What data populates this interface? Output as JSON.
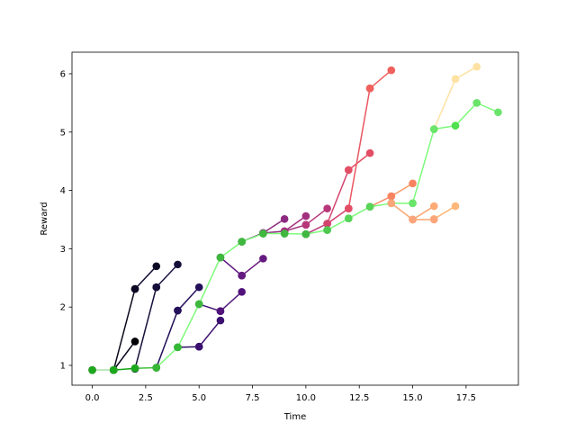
{
  "chart_data": {
    "type": "line",
    "title": "",
    "xlabel": "Time",
    "ylabel": "Reward",
    "xlim": [
      -0.95,
      19.95
    ],
    "ylim": [
      0.66,
      6.37
    ],
    "xticks": [
      0,
      2.5,
      5,
      7.5,
      10,
      12.5,
      15,
      17.5
    ],
    "xtick_labels": [
      "0.0",
      "2.5",
      "5.0",
      "7.5",
      "10.0",
      "12.5",
      "15.0",
      "17.5"
    ],
    "yticks": [
      1,
      2,
      3,
      4,
      5,
      6
    ],
    "ytick_labels": [
      "1",
      "2",
      "3",
      "4",
      "5",
      "6"
    ],
    "grid": false,
    "legend": "none",
    "segments": [
      {
        "line_color": "#0b0a1c",
        "point_color": "#000004",
        "x": [
          0,
          1
        ],
        "y": [
          0.92,
          0.92
        ]
      },
      {
        "line_color": "#0b0a1c",
        "point_color": "#000004",
        "x": [
          1,
          2
        ],
        "y": [
          0.92,
          2.31
        ]
      },
      {
        "line_color": "#0b0a1c",
        "point_color": "#000004",
        "x": [
          1,
          2
        ],
        "y": [
          0.92,
          1.41
        ]
      },
      {
        "line_color": "#140e36",
        "point_color": "#0b0924",
        "x": [
          2,
          3
        ],
        "y": [
          2.31,
          2.7
        ]
      },
      {
        "line_color": "#160f3b",
        "point_color": "#140e36",
        "x": [
          2,
          3
        ],
        "y": [
          0.94,
          2.34
        ]
      },
      {
        "line_color": "#1e1246",
        "point_color": "#150e38",
        "x": [
          3,
          4
        ],
        "y": [
          2.34,
          2.73
        ]
      },
      {
        "line_color": "#24105a",
        "point_color": "#1d1147",
        "x": [
          3,
          4
        ],
        "y": [
          0.96,
          1.94
        ]
      },
      {
        "line_color": "#2c1160",
        "point_color": "#24105a",
        "x": [
          4,
          5
        ],
        "y": [
          1.94,
          2.34
        ]
      },
      {
        "line_color": "#2c1163",
        "point_color": "#2f1163",
        "x": [
          4,
          5
        ],
        "y": [
          1.31,
          1.32
        ]
      },
      {
        "line_color": "#3e1070",
        "point_color": "#3b0f70",
        "x": [
          5,
          6
        ],
        "y": [
          1.32,
          1.77
        ]
      },
      {
        "line_color": "#3e1070",
        "point_color": "#3b0f70",
        "x": [
          5,
          6
        ],
        "y": [
          2.05,
          1.93
        ]
      },
      {
        "line_color": "#521a7a",
        "point_color": "#51127c",
        "x": [
          6,
          7
        ],
        "y": [
          1.93,
          2.26
        ]
      },
      {
        "line_color": "#5d177f",
        "point_color": "#57157e",
        "x": [
          6,
          7
        ],
        "y": [
          2.85,
          2.54
        ]
      },
      {
        "line_color": "#6d1d81",
        "point_color": "#641a80",
        "x": [
          7,
          8
        ],
        "y": [
          2.54,
          2.83
        ]
      },
      {
        "line_color": "#6b1d81",
        "point_color": "#641a80",
        "x": [
          7,
          8
        ],
        "y": [
          3.12,
          3.27
        ]
      },
      {
        "line_color": "#8f2a80",
        "point_color": "#8c2981",
        "x": [
          8,
          9
        ],
        "y": [
          3.27,
          3.51
        ]
      },
      {
        "line_color": "#8f2a80",
        "point_color": "#8c2981",
        "x": [
          8,
          9
        ],
        "y": [
          3.27,
          3.3
        ]
      },
      {
        "line_color": "#a3307e",
        "point_color": "#a3307e",
        "x": [
          9,
          10
        ],
        "y": [
          3.3,
          3.56
        ]
      },
      {
        "line_color": "#a3307e",
        "point_color": "#a3307e",
        "x": [
          9,
          10
        ],
        "y": [
          3.3,
          3.41
        ]
      },
      {
        "line_color": "#b73779",
        "point_color": "#b73779",
        "x": [
          10,
          11
        ],
        "y": [
          3.41,
          3.69
        ]
      },
      {
        "line_color": "#b73779",
        "point_color": "#b73779",
        "x": [
          10,
          11
        ],
        "y": [
          3.25,
          3.43
        ]
      },
      {
        "line_color": "#d3436e",
        "point_color": "#d3436e",
        "x": [
          11,
          12
        ],
        "y": [
          3.43,
          4.35
        ]
      },
      {
        "line_color": "#d3436e",
        "point_color": "#d3436e",
        "x": [
          11,
          12
        ],
        "y": [
          3.43,
          3.69
        ]
      },
      {
        "line_color": "#e34e65",
        "point_color": "#e34e65",
        "x": [
          12,
          13
        ],
        "y": [
          4.35,
          4.64
        ]
      },
      {
        "line_color": "#ea5661",
        "point_color": "#e34e65",
        "x": [
          12,
          13
        ],
        "y": [
          3.69,
          5.75
        ]
      },
      {
        "line_color": "#f0605d",
        "point_color": "#f0605d",
        "x": [
          13,
          14
        ],
        "y": [
          5.75,
          6.06
        ]
      },
      {
        "line_color": "#f68f6b",
        "point_color": "#f3765a",
        "x": [
          13,
          14
        ],
        "y": [
          3.72,
          3.9
        ]
      },
      {
        "line_color": "#f8a06e",
        "point_color": "#f8845f",
        "x": [
          14,
          15
        ],
        "y": [
          3.9,
          4.12
        ]
      },
      {
        "line_color": "#fca56f",
        "point_color": "#fcab75",
        "x": [
          15,
          16
        ],
        "y": [
          3.5,
          3.73
        ]
      },
      {
        "line_color": "#fdb87a",
        "point_color": "#fdb87a",
        "x": [
          16,
          17
        ],
        "y": [
          3.51,
          3.73
        ]
      },
      {
        "line_color": "#fde2a3",
        "point_color": "#fde2a3",
        "x": [
          17,
          18
        ],
        "y": [
          5.91,
          6.12
        ]
      },
      {
        "line_color": "#fde2a3",
        "point_color": "#fde2a3",
        "x": [
          16,
          17
        ],
        "y": [
          5.05,
          5.91
        ]
      },
      {
        "line_color": "#7dfa7b",
        "point_color": "#40d940",
        "x": [
          4,
          5
        ],
        "y": [
          1.31,
          2.05
        ]
      },
      {
        "line_color": "#7dfa7b",
        "point_color": "#3db83d",
        "x": [
          5,
          6
        ],
        "y": [
          2.05,
          2.85
        ]
      },
      {
        "line_color": "#7dfa7b",
        "point_color": "#40b840",
        "x": [
          6,
          7
        ],
        "y": [
          2.85,
          3.12
        ]
      },
      {
        "line_color": "#7dfa7b",
        "point_color": "#40b840",
        "x": [
          7,
          8
        ],
        "y": [
          3.12,
          3.26
        ]
      },
      {
        "line_color": "#7dfa7b",
        "point_color": "#40b840",
        "x": [
          8,
          9
        ],
        "y": [
          3.26,
          3.26
        ]
      },
      {
        "line_color": "#7dfa7b",
        "point_color": "#40b840",
        "x": [
          9,
          10
        ],
        "y": [
          3.26,
          3.25
        ]
      },
      {
        "line_color": "#7dfa7b",
        "point_color": "#40b840",
        "x": [
          10,
          11
        ],
        "y": [
          3.25,
          3.32
        ]
      },
      {
        "line_color": "#7dfa7b",
        "point_color": "#4ec84e",
        "x": [
          11,
          12
        ],
        "y": [
          3.32,
          3.52
        ]
      },
      {
        "line_color": "#7dfa7b",
        "point_color": "#58d458",
        "x": [
          12,
          13
        ],
        "y": [
          3.52,
          3.72
        ]
      },
      {
        "line_color": "#7dfa7b",
        "point_color": "#58d458",
        "x": [
          13,
          14
        ],
        "y": [
          3.72,
          3.78
        ]
      },
      {
        "line_color": "#7dfa7b",
        "point_color": "#60dc60",
        "x": [
          14,
          15
        ],
        "y": [
          3.78,
          3.78
        ]
      },
      {
        "line_color": "#7dfa7b",
        "point_color": "#6ae46a",
        "x": [
          15,
          16
        ],
        "y": [
          3.78,
          5.05
        ]
      },
      {
        "line_color": "#7dfa7b",
        "point_color": "#6ae46a",
        "x": [
          16,
          17
        ],
        "y": [
          5.05,
          5.11
        ]
      },
      {
        "line_color": "#7dfa7b",
        "point_color": "#50e050",
        "x": [
          17,
          18
        ],
        "y": [
          5.11,
          5.5
        ]
      },
      {
        "line_color": "#7dfa7b",
        "point_color": "#6ae46a",
        "x": [
          18,
          19
        ],
        "y": [
          5.5,
          5.34
        ]
      },
      {
        "line_color": "#c8ffc3",
        "point_color": "#1ea81e",
        "x": [
          0,
          1
        ],
        "y": [
          0.92,
          0.92
        ]
      },
      {
        "line_color": "#12a312",
        "point_color": "#1ea81e",
        "x": [
          1,
          2
        ],
        "y": [
          0.92,
          0.95
        ]
      },
      {
        "line_color": "#3ec33e",
        "point_color": "#1ea81e",
        "x": [
          2,
          3
        ],
        "y": [
          0.95,
          0.96
        ]
      },
      {
        "line_color": "#7dfa7b",
        "point_color": "#36b836",
        "x": [
          3,
          4
        ],
        "y": [
          0.96,
          1.31
        ]
      },
      {
        "line_color": "#fca56f",
        "point_color": "#fda57a",
        "x": [
          14,
          15
        ],
        "y": [
          3.78,
          3.5
        ]
      },
      {
        "line_color": "#fca56f",
        "point_color": "#fda57a",
        "x": [
          15,
          16
        ],
        "y": [
          3.5,
          3.5
        ]
      }
    ]
  }
}
